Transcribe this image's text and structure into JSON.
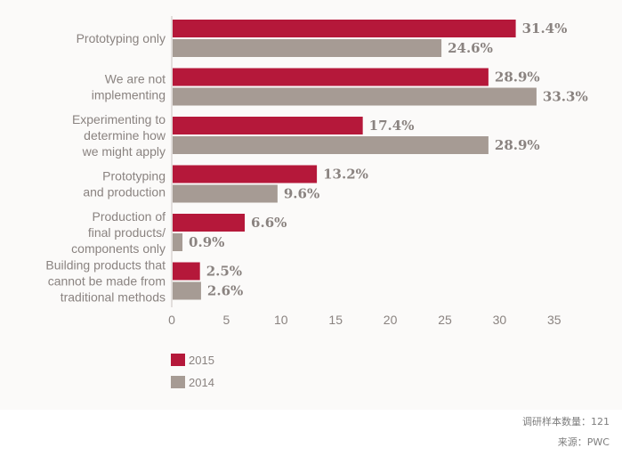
{
  "chart_data": {
    "type": "bar",
    "orientation": "horizontal",
    "categories": [
      [
        "Prototyping only"
      ],
      [
        "We are not",
        "implementing"
      ],
      [
        "Experimenting to",
        "determine how",
        "we might apply"
      ],
      [
        "Prototyping",
        "and production"
      ],
      [
        "Production of",
        "final products/",
        "components only"
      ],
      [
        "Building products that",
        "cannot be made from",
        "traditional methods"
      ]
    ],
    "series": [
      {
        "name": "2015",
        "color": "#b5183a",
        "values": [
          31.4,
          28.9,
          17.4,
          13.2,
          6.6,
          2.5
        ],
        "labels": [
          "31.4%",
          "28.9%",
          "17.4%",
          "13.2%",
          "6.6%",
          "2.5%"
        ]
      },
      {
        "name": "2014",
        "color": "#a69b94",
        "values": [
          24.6,
          33.3,
          28.9,
          9.6,
          0.9,
          2.6
        ],
        "labels": [
          "24.6%",
          "33.3%",
          "28.9%",
          "9.6%",
          "0.9%",
          "2.6%"
        ]
      }
    ],
    "xlim": [
      0,
      35
    ],
    "xticks": [
      "0",
      "5",
      "10",
      "15",
      "20",
      "25",
      "30",
      "35"
    ],
    "grid": false,
    "legend_position": "bottom-left"
  },
  "footnotes": {
    "sample": "调研样本数量：121",
    "source": "来源：PWC"
  }
}
